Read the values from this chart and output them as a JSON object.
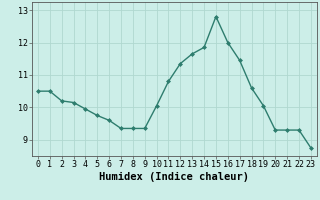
{
  "x": [
    0,
    1,
    2,
    3,
    4,
    5,
    6,
    7,
    8,
    9,
    10,
    11,
    12,
    13,
    14,
    15,
    16,
    17,
    18,
    19,
    20,
    21,
    22,
    23
  ],
  "y": [
    10.5,
    10.5,
    10.2,
    10.15,
    9.95,
    9.75,
    9.6,
    9.35,
    9.35,
    9.35,
    10.05,
    10.8,
    11.35,
    11.65,
    11.85,
    12.8,
    12.0,
    11.45,
    10.6,
    10.05,
    9.3,
    9.3,
    9.3,
    8.75
  ],
  "line_color": "#2e7d6e",
  "marker": "D",
  "marker_size": 2.0,
  "bg_color": "#cceee8",
  "plot_bg_color": "#cceee8",
  "grid_color": "#b0d8d0",
  "axis_color": "#555555",
  "xlabel": "Humidex (Indice chaleur)",
  "xlabel_fontsize": 7.5,
  "ylim": [
    8.5,
    13.25
  ],
  "xlim": [
    -0.5,
    23.5
  ],
  "yticks": [
    9,
    10,
    11,
    12,
    13
  ],
  "xticks": [
    0,
    1,
    2,
    3,
    4,
    5,
    6,
    7,
    8,
    9,
    10,
    11,
    12,
    13,
    14,
    15,
    16,
    17,
    18,
    19,
    20,
    21,
    22,
    23
  ],
  "tick_fontsize": 6.0,
  "line_width": 1.0
}
